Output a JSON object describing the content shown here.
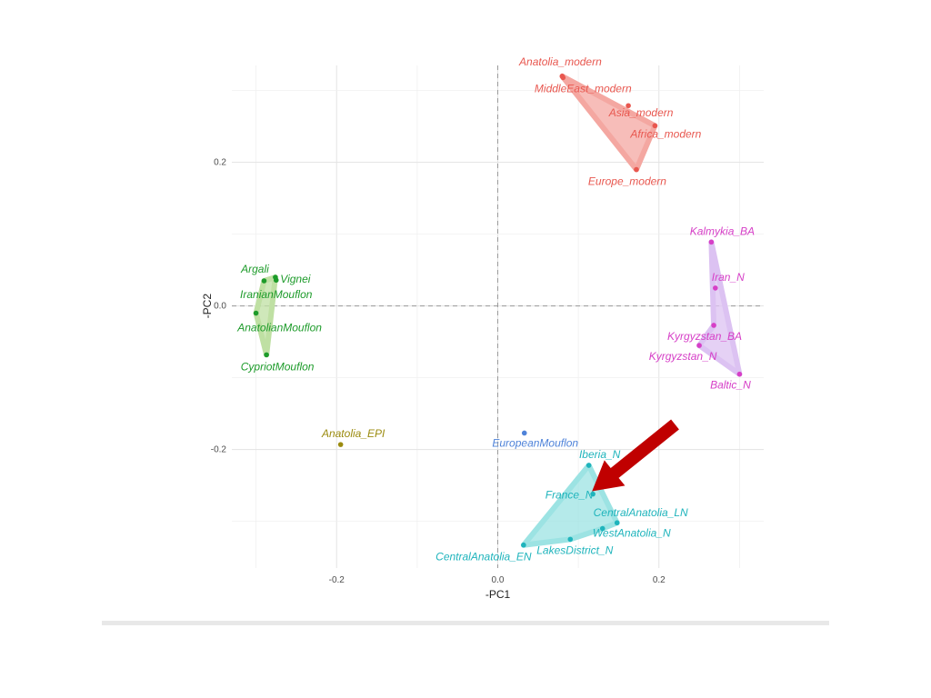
{
  "chart_data": {
    "type": "scatter",
    "xlabel": "-PC1",
    "ylabel": "-PC2",
    "xlim": [
      -0.33,
      0.33
    ],
    "ylim": [
      -0.365,
      0.335
    ],
    "x_ticks": [
      {
        "value": -0.2,
        "label": "-0.2"
      },
      {
        "value": 0.0,
        "label": "0.0"
      },
      {
        "value": 0.2,
        "label": "0.2"
      }
    ],
    "y_ticks": [
      {
        "value": 0.2,
        "label": "0.2"
      },
      {
        "value": 0.0,
        "label": "0.0"
      },
      {
        "value": -0.2,
        "label": "-0.2"
      }
    ],
    "grid": true,
    "zero_lines": true,
    "groups": [
      {
        "color": "#e8574f",
        "fill": "#f4a7a1",
        "hull": [
          "Anatolia_modern",
          "Africa_modern",
          "Europe_modern"
        ],
        "points": [
          {
            "label": "Anatolia_modern",
            "x": 0.08,
            "y": 0.32
          },
          {
            "label": "MiddleEast_modern",
            "x": 0.081,
            "y": 0.318
          },
          {
            "label": "Asia_modern",
            "x": 0.162,
            "y": 0.279
          },
          {
            "label": "Africa_modern",
            "x": 0.195,
            "y": 0.251
          },
          {
            "label": "Europe_modern",
            "x": 0.172,
            "y": 0.19
          }
        ]
      },
      {
        "color": "#d63fc7",
        "fill": "#dcc2f2",
        "hull": [
          "Kalmykia_BA",
          "Baltic_N",
          "Kyrgyzstan_N",
          "Kyrgyzstan_BA"
        ],
        "points": [
          {
            "label": "Kalmykia_BA",
            "x": 0.265,
            "y": 0.089
          },
          {
            "label": "Iran_N",
            "x": 0.27,
            "y": 0.025
          },
          {
            "label": "Kyrgyzstan_BA",
            "x": 0.268,
            "y": -0.027
          },
          {
            "label": "Kyrgyzstan_N",
            "x": 0.25,
            "y": -0.055
          },
          {
            "label": "Baltic_N",
            "x": 0.3,
            "y": -0.095
          }
        ]
      },
      {
        "color": "#1d9b2a",
        "fill": "#bfe0a3",
        "hull": [
          "Vignei",
          "CypriotMouflon",
          "AnatolianMouflon",
          "Argali"
        ],
        "points": [
          {
            "label": "Argali",
            "x": -0.29,
            "y": 0.035
          },
          {
            "label": "Vignei",
            "x": -0.276,
            "y": 0.04
          },
          {
            "label": "IranianMouflon",
            "x": -0.275,
            "y": 0.036
          },
          {
            "label": "AnatolianMouflon",
            "x": -0.3,
            "y": -0.01
          },
          {
            "label": "CypriotMouflon",
            "x": -0.287,
            "y": -0.068
          }
        ]
      },
      {
        "color": "#1fb4bc",
        "fill": "#9ce3e3",
        "hull": [
          "Iberia_N",
          "CentralAnatolia_LN",
          "WestAnatolia_N",
          "LakesDistrict_N",
          "CentralAnatolia_EN"
        ],
        "points": [
          {
            "label": "Iberia_N",
            "x": 0.113,
            "y": -0.222
          },
          {
            "label": "France_N",
            "x": 0.118,
            "y": -0.262
          },
          {
            "label": "CentralAnatolia_LN",
            "x": 0.148,
            "y": -0.302
          },
          {
            "label": "WestAnatolia_N",
            "x": 0.13,
            "y": -0.31
          },
          {
            "label": "LakesDistrict_N",
            "x": 0.09,
            "y": -0.325
          },
          {
            "label": "CentralAnatolia_EN",
            "x": 0.032,
            "y": -0.333
          }
        ]
      },
      {
        "color": "#9b8b0f",
        "fill": "",
        "hull": [],
        "points": [
          {
            "label": "Anatolia_EPI",
            "x": -0.195,
            "y": -0.193
          }
        ]
      },
      {
        "color": "#4f83d9",
        "fill": "",
        "hull": [],
        "points": [
          {
            "label": "EuropeanMouflon",
            "x": 0.033,
            "y": -0.177
          }
        ]
      }
    ],
    "annotation_arrow": {
      "color": "#c00000",
      "from": {
        "x": 0.22,
        "y": -0.165
      },
      "to": {
        "x": 0.117,
        "y": -0.258
      }
    }
  }
}
